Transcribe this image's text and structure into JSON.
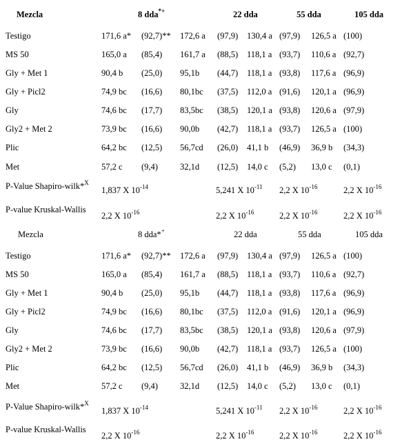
{
  "tables": [
    {
      "header": {
        "mezcla": "Mezcla",
        "dda8": "8 dda",
        "dda8_sup": "*+",
        "dda22": "22 dda",
        "dda55": "55 dda",
        "dda105": "105 dda"
      },
      "rows": [
        {
          "name": "Testigo",
          "v8": "171,6 a*",
          "p8": "(92,7)**",
          "v22": "172,6 a",
          "p22": "(97,9)",
          "v55": "130,4 a",
          "p55": "(97,9)",
          "v105": "126,5 a",
          "p105": "(100)"
        },
        {
          "name": "MS 50",
          "v8": "165,0 a",
          "p8": "(85,4)",
          "v22": "161,7 a",
          "p22": "(88,5)",
          "v55": "118,1 a",
          "p55": "(93,7)",
          "v105": "110,6 a",
          "p105": "(92,7)"
        },
        {
          "name": "Gly + Met 1",
          "v8": "90,4 b",
          "p8": "(25,0)",
          "v22": "95,1b",
          "p22": "(44,7)",
          "v55": "118,1 a",
          "p55": "(93,8)",
          "v105": "117,6 a",
          "p105": "(96,9)"
        },
        {
          "name": "Gly + Picl2",
          "v8": "74,9 bc",
          "p8": "(16,6)",
          "v22": "80,1bc",
          "p22": "(37,5)",
          "v55": "112,0 a",
          "p55": "(91,6)",
          "v105": "120,1 a",
          "p105": "(96,9)"
        },
        {
          "name": "Gly",
          "v8": "74,6 bc",
          "p8": "(17,7)",
          "v22": "83,5bc",
          "p22": "(38,5)",
          "v55": "120,1 a",
          "p55": "(93,8)",
          "v105": "120,6 a",
          "p105": "(97,9)"
        },
        {
          "name": "Gly2 + Met 2",
          "v8": "73,9 bc",
          "p8": "(16,6)",
          "v22": "90,0b",
          "p22": "(42,7)",
          "v55": "118,1 a",
          "p55": "(93,7)",
          "v105": "126,5 a",
          "p105": "(100)"
        },
        {
          "name": "Plic",
          "v8": "64,2 bc",
          "p8": "(12,5)",
          "v22": "56,7cd",
          "p22": "(26,0)",
          "v55": "41,1 b",
          "p55": "(46,9)",
          "v105": "36,9 b",
          "p105": "(34,3)"
        },
        {
          "name": "Met",
          "v8": "57,2 c",
          "p8": "(9,4)",
          "v22": "32,1d",
          "p22": "(12,5)",
          "v55": "14,0 c",
          "p55": "(5,2)",
          "v105": "13,0 c",
          "p105": "(0,1)"
        }
      ],
      "shapiro": {
        "label": "P-Value Shapiro-wilk*",
        "label_sup": "X",
        "v8": "1,837 X 10",
        "e8": "-14",
        "v22": "5,241 X 10",
        "e22": "-11",
        "v55": "2,2 X 10",
        "e55": "-16",
        "v105": "2,2 X 10",
        "e105": "-16"
      },
      "kruskal": {
        "label": "P-value Kruskal-Wallis",
        "v8": "2,2 X 10",
        "e8": "-16",
        "v22": "2,2 X 10",
        "e22": "-16",
        "v55": "2,2 X 10",
        "e55": "-16",
        "v105": "2,2 X 10",
        "e105": "-16"
      }
    },
    {
      "header": {
        "mezcla": "Mezcla",
        "dda8": "8 dda*",
        "dda8_sup": "+",
        "dda22": "22 dda",
        "dda55": "55 dda",
        "dda105": "105 dda"
      },
      "rows": [
        {
          "name": "Testigo",
          "v8": "171,6 a*",
          "p8": "(92,7)**",
          "v22": "172,6 a",
          "p22": "(97,9)",
          "v55": "130,4 a",
          "p55": "(97,9)",
          "v105": "126,5 a",
          "p105": "(100)"
        },
        {
          "name": "MS 50",
          "v8": "165,0 a",
          "p8": "(85,4)",
          "v22": "161,7 a",
          "p22": "(88,5)",
          "v55": "118,1 a",
          "p55": "(93,7)",
          "v105": "110,6 a",
          "p105": "(92,7)"
        },
        {
          "name": "Gly + Met 1",
          "v8": "90,4 b",
          "p8": "(25,0)",
          "v22": "95,1b",
          "p22": "(44,7)",
          "v55": "118,1 a",
          "p55": "(93,8)",
          "v105": "117,6 a",
          "p105": "(96,9)"
        },
        {
          "name": "Gly + Picl2",
          "v8": "74,9 bc",
          "p8": "(16,6)",
          "v22": "80,1bc",
          "p22": "(37,5)",
          "v55": "112,0 a",
          "p55": "(91,6)",
          "v105": "120,1 a",
          "p105": "(96,9)"
        },
        {
          "name": "Gly",
          "v8": "74,6 bc",
          "p8": "(17,7)",
          "v22": "83,5bc",
          "p22": "(38,5)",
          "v55": "120,1 a",
          "p55": "(93,8)",
          "v105": "120,6 a",
          "p105": "(97,9)"
        },
        {
          "name": "Gly2 + Met 2",
          "v8": "73,9 bc",
          "p8": "(16,6)",
          "v22": "90,0b",
          "p22": "(42,7)",
          "v55": "118,1 a",
          "p55": "(93,7)",
          "v105": "126,5 a",
          "p105": "(100)"
        },
        {
          "name": "Plic",
          "v8": "64,2 bc",
          "p8": "(12,5)",
          "v22": "56,7cd",
          "p22": "(26,0)",
          "v55": "41,1 b",
          "p55": "(46,9)",
          "v105": "36,9 b",
          "p105": "(34,3)"
        },
        {
          "name": "Met",
          "v8": "57,2 c",
          "p8": "(9,4)",
          "v22": "32,1d",
          "p22": "(12,5)",
          "v55": "14,0 c",
          "p55": "(5,2)",
          "v105": "13,0 c",
          "p105": "(0,1)"
        }
      ],
      "shapiro": {
        "label": "P-Value Shapiro-wilk*",
        "label_sup": "X",
        "v8": "1,837 X 10",
        "e8": "-14",
        "v22": "5,241 X 10",
        "e22": "-11",
        "v55": "2,2 X 10",
        "e55": "-16",
        "v105": "2,2 X 10",
        "e105": "-16"
      },
      "kruskal": {
        "label": "P-value Kruskal-Wallis",
        "v8": "2,2 X 10",
        "e8": "-16",
        "v22": "2,2 X 10",
        "e22": "-16",
        "v55": "2,2 X 10",
        "e55": "-16",
        "v105": "2,2 X 10",
        "e105": "-16"
      }
    }
  ]
}
